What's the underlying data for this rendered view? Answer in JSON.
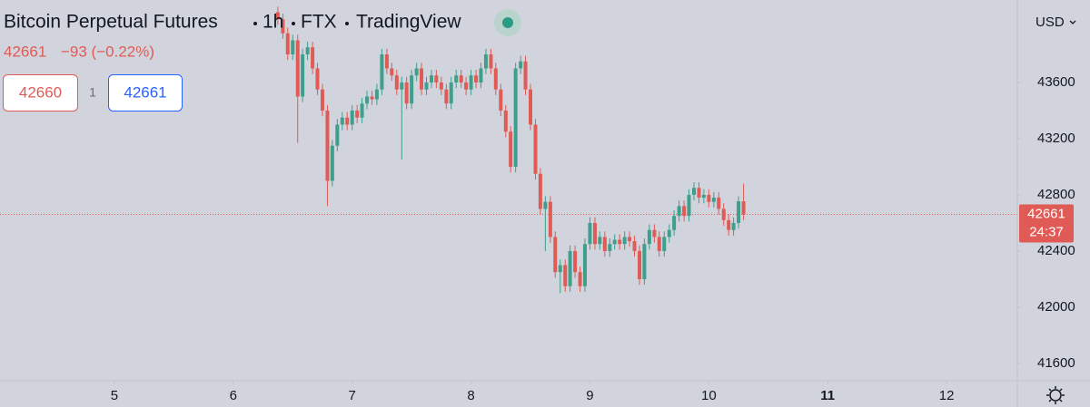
{
  "header": {
    "symbol": "Bitcoin Perpetual Futures",
    "interval": "1h",
    "exchange": "FTX",
    "source": "TradingView",
    "price": "42661",
    "change": "−93 (−0.22%)",
    "bid": "42660",
    "spread": "1",
    "ask": "42661",
    "currency": "USD"
  },
  "chart_data": {
    "type": "candlestick",
    "up_color": "#3e9f8c",
    "down_color": "#e05b55",
    "countdown": "24:37",
    "xlim": [
      4.038,
      12.595
    ],
    "xticks": [
      5,
      6,
      7,
      8,
      9,
      10,
      11,
      12
    ],
    "ylim": [
      41477,
      44187
    ],
    "yticks": [
      41600,
      42000,
      42400,
      42800,
      43200,
      43600
    ],
    "x": [
      6.375,
      6.417,
      6.458,
      6.5,
      6.542,
      6.583,
      6.625,
      6.667,
      6.708,
      6.75,
      6.792,
      6.833,
      6.875,
      6.917,
      6.958,
      7,
      7.042,
      7.083,
      7.125,
      7.167,
      7.208,
      7.25,
      7.292,
      7.333,
      7.375,
      7.417,
      7.458,
      7.5,
      7.542,
      7.583,
      7.625,
      7.667,
      7.708,
      7.75,
      7.792,
      7.833,
      7.875,
      7.917,
      7.958,
      8,
      8.042,
      8.083,
      8.125,
      8.167,
      8.208,
      8.25,
      8.292,
      8.333,
      8.375,
      8.417,
      8.458,
      8.5,
      8.542,
      8.583,
      8.625,
      8.667,
      8.708,
      8.75,
      8.792,
      8.833,
      8.875,
      8.917,
      8.958,
      9,
      9.042,
      9.083,
      9.125,
      9.167,
      9.208,
      9.25,
      9.292,
      9.333,
      9.375,
      9.417,
      9.458,
      9.5,
      9.542,
      9.583,
      9.625,
      9.667,
      9.708,
      9.75,
      9.792,
      9.833,
      9.875,
      9.917,
      9.958,
      10,
      10.042,
      10.083,
      10.125,
      10.167,
      10.208,
      10.25,
      10.292
    ],
    "open": [
      44100,
      44050,
      43950,
      43800,
      43900,
      43500,
      43800,
      43850,
      43700,
      43550,
      43400,
      42900,
      43150,
      43300,
      43350,
      43300,
      43400,
      43350,
      43450,
      43500,
      43480,
      43550,
      43800,
      43700,
      43650,
      43550,
      43600,
      43450,
      43650,
      43700,
      43550,
      43600,
      43650,
      43600,
      43550,
      43450,
      43600,
      43650,
      43600,
      43550,
      43650,
      43600,
      43700,
      43800,
      43700,
      43550,
      43400,
      43250,
      43000,
      43700,
      43750,
      43550,
      43300,
      42950,
      42700,
      42750,
      42500,
      42250,
      42300,
      42150,
      42400,
      42250,
      42150,
      42450,
      42600,
      42450,
      42500,
      42400,
      42450,
      42480,
      42450,
      42500,
      42470,
      42400,
      42200,
      42450,
      42550,
      42500,
      42400,
      42500,
      42550,
      42650,
      42720,
      42650,
      42800,
      42850,
      42780,
      42800,
      42750,
      42780,
      42700,
      42620,
      42550,
      42600,
      42754
    ],
    "high": [
      44140,
      44090,
      43990,
      43940,
      43940,
      43840,
      43890,
      43890,
      43740,
      43590,
      43440,
      43190,
      43340,
      43390,
      43390,
      43440,
      43440,
      43490,
      43540,
      43540,
      43590,
      43840,
      43840,
      43740,
      43690,
      43640,
      43640,
      43690,
      43740,
      43740,
      43640,
      43690,
      43690,
      43640,
      43590,
      43640,
      43690,
      43690,
      43640,
      43690,
      43690,
      43740,
      43840,
      43840,
      43740,
      43590,
      43440,
      43290,
      43740,
      43790,
      43790,
      43590,
      43340,
      42990,
      42790,
      42790,
      42540,
      42340,
      42340,
      42440,
      42440,
      42290,
      42490,
      42640,
      42640,
      42540,
      42540,
      42490,
      42520,
      42520,
      42540,
      42540,
      42510,
      42440,
      42490,
      42590,
      42590,
      42540,
      42540,
      42590,
      42690,
      42760,
      42760,
      42840,
      42890,
      42890,
      42840,
      42840,
      42820,
      42820,
      42740,
      42660,
      42640,
      42790,
      42880
    ],
    "low": [
      44010,
      43910,
      43760,
      43760,
      43170,
      43460,
      43760,
      43660,
      43510,
      43360,
      42720,
      42860,
      43110,
      43260,
      43260,
      43260,
      43310,
      43310,
      43410,
      43440,
      43440,
      43510,
      43660,
      43610,
      43510,
      43050,
      43410,
      43410,
      43610,
      43510,
      43510,
      43560,
      43560,
      43510,
      43410,
      43410,
      43560,
      43560,
      43510,
      43510,
      43560,
      43560,
      43660,
      43660,
      43510,
      43360,
      43210,
      42960,
      42960,
      43660,
      43510,
      43260,
      42910,
      42660,
      42400,
      42460,
      42210,
      42100,
      42110,
      42110,
      42210,
      42110,
      42110,
      42410,
      42410,
      42410,
      42360,
      42360,
      42410,
      42410,
      42410,
      42430,
      42360,
      42160,
      42160,
      42410,
      42460,
      42360,
      42360,
      42460,
      42510,
      42610,
      42610,
      42610,
      42760,
      42740,
      42740,
      42710,
      42710,
      42660,
      42580,
      42510,
      42510,
      42560,
      42620
    ],
    "close": [
      44050,
      43950,
      43800,
      43900,
      43500,
      43800,
      43850,
      43700,
      43550,
      43400,
      42900,
      43150,
      43300,
      43350,
      43300,
      43400,
      43350,
      43450,
      43500,
      43480,
      43550,
      43800,
      43700,
      43650,
      43550,
      43600,
      43450,
      43650,
      43700,
      43550,
      43600,
      43650,
      43600,
      43550,
      43450,
      43600,
      43650,
      43600,
      43550,
      43650,
      43600,
      43700,
      43800,
      43700,
      43550,
      43400,
      43250,
      43000,
      43700,
      43750,
      43550,
      43300,
      42950,
      42700,
      42750,
      42500,
      42250,
      42300,
      42150,
      42400,
      42250,
      42150,
      42450,
      42600,
      42450,
      42500,
      42400,
      42450,
      42480,
      42450,
      42500,
      42470,
      42400,
      42200,
      42450,
      42550,
      42500,
      42400,
      42500,
      42550,
      42650,
      42720,
      42650,
      42800,
      42850,
      42780,
      42800,
      42750,
      42780,
      42700,
      42620,
      42550,
      42600,
      42754,
      42661
    ]
  }
}
